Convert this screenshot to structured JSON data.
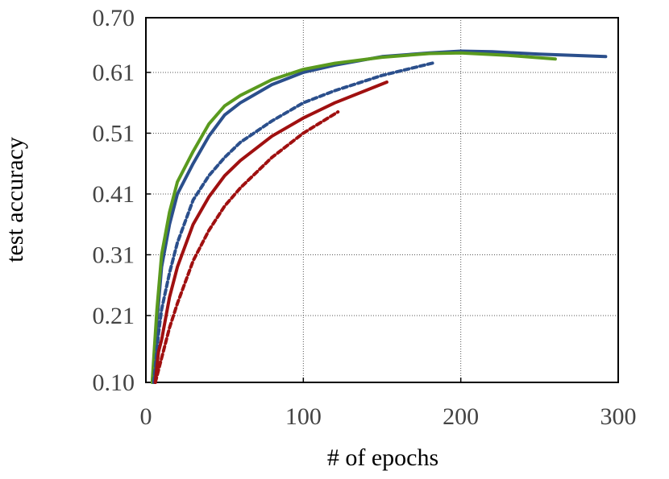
{
  "chart_data": {
    "type": "line",
    "xlabel": "# of epochs",
    "ylabel": "test accuracy",
    "xlim": [
      0,
      300
    ],
    "xticks": [
      0,
      100,
      200,
      300
    ],
    "ylim": [
      0.1,
      0.7
    ],
    "yticks": [
      {
        "value": 0.1,
        "label": "0.10"
      },
      0.21,
      0.31,
      0.41,
      0.51,
      0.61,
      {
        "value": 0.7,
        "label": "0.70"
      }
    ],
    "grid": true,
    "series": [
      {
        "color": "#2b4f8c",
        "dash": false,
        "x": [
          5,
          7,
          10,
          15,
          20,
          30,
          40,
          50,
          60,
          80,
          100,
          120,
          150,
          180,
          200,
          220,
          250,
          292
        ],
        "values": [
          0.1,
          0.2,
          0.29,
          0.36,
          0.41,
          0.46,
          0.505,
          0.54,
          0.56,
          0.59,
          0.61,
          0.622,
          0.636,
          0.642,
          0.645,
          0.644,
          0.64,
          0.636
        ]
      },
      {
        "color": "#5a9a1e",
        "dash": false,
        "x": [
          4,
          7,
          10,
          15,
          20,
          30,
          40,
          50,
          60,
          80,
          100,
          120,
          150,
          180,
          200,
          230,
          260
        ],
        "values": [
          0.1,
          0.22,
          0.31,
          0.38,
          0.43,
          0.48,
          0.525,
          0.555,
          0.572,
          0.598,
          0.615,
          0.625,
          0.635,
          0.641,
          0.642,
          0.638,
          0.632
        ]
      },
      {
        "color": "#2b4f8c",
        "dash": true,
        "x": [
          5,
          8,
          10,
          15,
          20,
          30,
          40,
          50,
          60,
          80,
          100,
          120,
          150,
          183
        ],
        "values": [
          0.1,
          0.18,
          0.22,
          0.28,
          0.33,
          0.4,
          0.44,
          0.47,
          0.495,
          0.53,
          0.56,
          0.58,
          0.605,
          0.626
        ]
      },
      {
        "color": "#a01010",
        "dash": false,
        "x": [
          6,
          8,
          10,
          15,
          20,
          30,
          40,
          50,
          60,
          80,
          100,
          120,
          153
        ],
        "values": [
          0.1,
          0.15,
          0.17,
          0.24,
          0.29,
          0.36,
          0.405,
          0.44,
          0.465,
          0.505,
          0.535,
          0.56,
          0.594
        ]
      },
      {
        "color": "#a01010",
        "dash": true,
        "x": [
          6,
          8,
          10,
          15,
          20,
          30,
          40,
          50,
          60,
          80,
          100,
          122
        ],
        "values": [
          0.1,
          0.12,
          0.14,
          0.19,
          0.23,
          0.3,
          0.35,
          0.39,
          0.42,
          0.47,
          0.51,
          0.545
        ]
      }
    ]
  }
}
